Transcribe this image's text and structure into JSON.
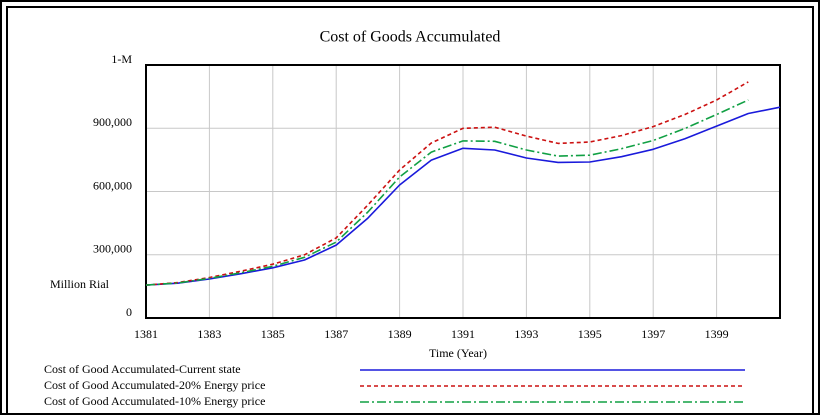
{
  "chart_data": {
    "type": "line",
    "title": "Cost of Goods Accumulated",
    "x_label": "Time (Year)",
    "y_label": "Million Rial",
    "x": [
      1381,
      1382,
      1383,
      1384,
      1385,
      1386,
      1387,
      1388,
      1389,
      1390,
      1391,
      1392,
      1393,
      1394,
      1395,
      1396,
      1397,
      1398,
      1399,
      1400,
      1401
    ],
    "series": [
      {
        "name": "Cost of Good Accumulated-Current state",
        "color": "#1a1adb",
        "dash": "solid",
        "values": [
          156000,
          165000,
          185000,
          210000,
          238000,
          275000,
          346000,
          474000,
          631000,
          749000,
          805000,
          797000,
          759000,
          738000,
          740000,
          765000,
          800000,
          850000,
          910000,
          970000,
          1000000
        ]
      },
      {
        "name": "Cost of Good Accumulated-20% Energy price",
        "color": "#cc1111",
        "dash": "dashed",
        "values": [
          156000,
          168000,
          192000,
          222000,
          255000,
          300000,
          380000,
          536000,
          702000,
          830000,
          900000,
          905000,
          863000,
          828000,
          835000,
          865000,
          908000,
          965000,
          1034000,
          1120000,
          null
        ]
      },
      {
        "name": "Cost of Good Accumulated-10% Energy price",
        "color": "#11a044",
        "dash": "dashdot",
        "values": [
          156000,
          166000,
          188000,
          215000,
          245000,
          288000,
          360000,
          503000,
          669000,
          787000,
          840000,
          838000,
          797000,
          768000,
          772000,
          803000,
          842000,
          899000,
          965000,
          1034000,
          null
        ]
      }
    ],
    "xlim": [
      1381,
      1401
    ],
    "ylim": [
      0,
      1200000
    ],
    "xticks": [
      1381,
      1383,
      1385,
      1387,
      1389,
      1391,
      1393,
      1395,
      1397,
      1399
    ],
    "yticks": [
      0,
      {
        "value": 300000,
        "label": "300,000"
      },
      {
        "value": 600000,
        "label": "600,000"
      },
      {
        "value": 900000,
        "label": "900,000"
      },
      {
        "value": 1200000,
        "label": "1-M"
      }
    ],
    "grid": true,
    "legend": "bottom"
  }
}
